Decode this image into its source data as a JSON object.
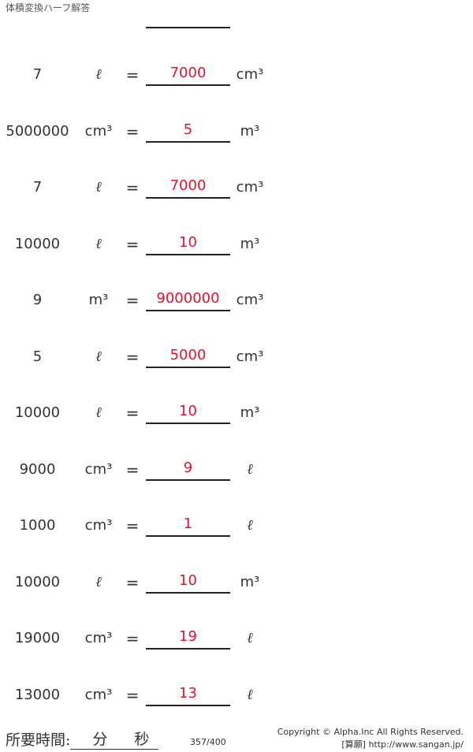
{
  "title": "体積変換ハーフ解答",
  "rows": [
    {
      "value": "7",
      "from_unit": "ℓ",
      "equals": "=",
      "answer": "7000",
      "to_unit": "cm³"
    },
    {
      "value": "5000000",
      "from_unit": "cm³",
      "equals": "=",
      "answer": "5",
      "to_unit": "m³"
    },
    {
      "value": "7",
      "from_unit": "ℓ",
      "equals": "=",
      "answer": "7000",
      "to_unit": "cm³"
    },
    {
      "value": "10000",
      "from_unit": "ℓ",
      "equals": "=",
      "answer": "10",
      "to_unit": "m³"
    },
    {
      "value": "9",
      "from_unit": "m³",
      "equals": "=",
      "answer": "9000000",
      "to_unit": "cm³"
    },
    {
      "value": "5",
      "from_unit": "ℓ",
      "equals": "=",
      "answer": "5000",
      "to_unit": "cm³"
    },
    {
      "value": "10000",
      "from_unit": "ℓ",
      "equals": "=",
      "answer": "10",
      "to_unit": "m³"
    },
    {
      "value": "9000",
      "from_unit": "cm³",
      "equals": "=",
      "answer": "9",
      "to_unit": "ℓ"
    },
    {
      "value": "1000",
      "from_unit": "cm³",
      "equals": "=",
      "answer": "1",
      "to_unit": "ℓ"
    },
    {
      "value": "10000",
      "from_unit": "ℓ",
      "equals": "=",
      "answer": "10",
      "to_unit": "m³"
    },
    {
      "value": "19000",
      "from_unit": "cm³",
      "equals": "=",
      "answer": "19",
      "to_unit": "ℓ"
    },
    {
      "value": "13000",
      "from_unit": "cm³",
      "equals": "=",
      "answer": "13",
      "to_unit": "ℓ"
    }
  ],
  "footer": {
    "time_label": "所要時間:",
    "minutes": "分",
    "seconds": "秒",
    "page": "357/400",
    "copyright": "Copyright © Alpha.Inc All Rights Reserved.",
    "site": "[算願] http://www.sangan.jp/"
  },
  "colors": {
    "answer": "#e8102a"
  }
}
